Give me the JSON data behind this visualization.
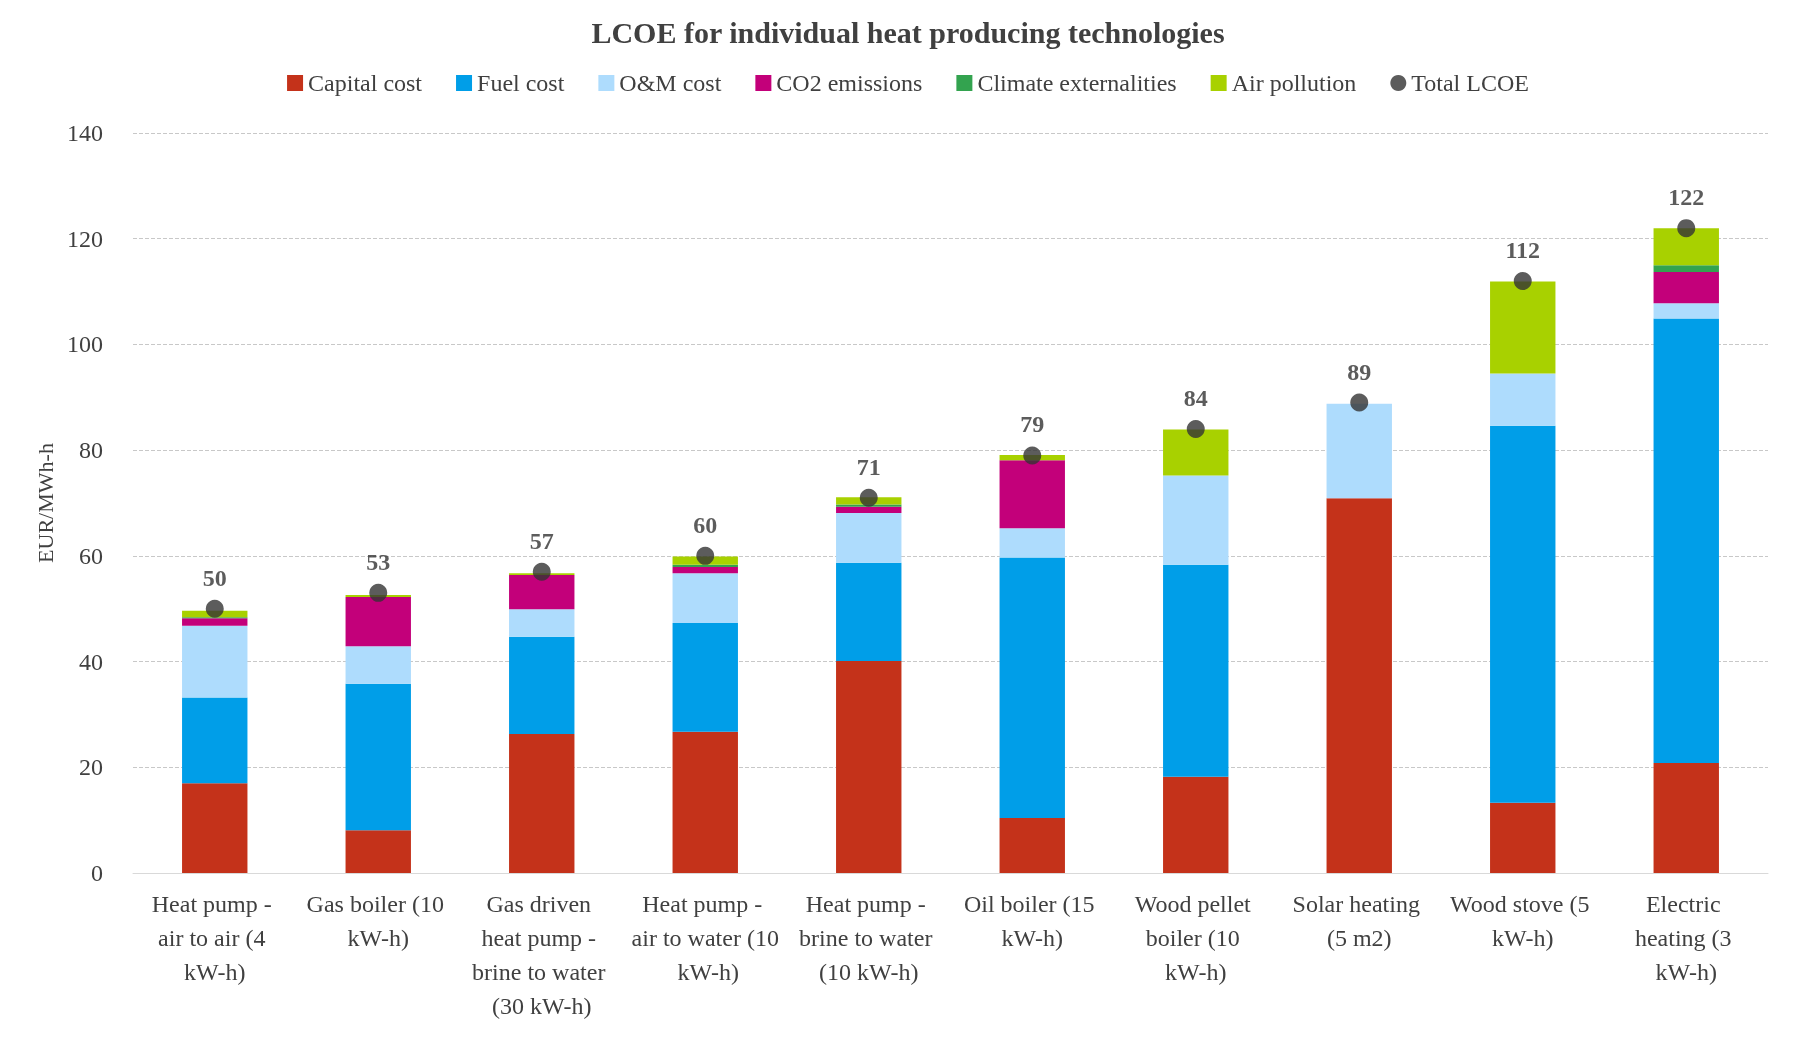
{
  "chart_data": {
    "type": "bar",
    "stacked": true,
    "title": "LCOE for individual heat producing technologies",
    "ylabel": "EUR/MWh-h",
    "categories": [
      "Heat pump - air to air (4 kW-h)",
      "Gas boiler (10 kW-h)",
      "Gas driven heat pump - brine to water (30 kW-h)",
      "Heat pump - air to water (10 kW-h)",
      "Heat pump - brine to water (10 kW-h)",
      "Oil boiler (15 kW-h)",
      "Wood pellet boiler (10 kW-h)",
      "Solar heating (5 m2)",
      "Wood stove (5 kW-h)",
      "Electric heating (3 kW-h)"
    ],
    "series": [
      {
        "name": "Capital cost",
        "color": "#c4321a",
        "values": [
          17,
          8.1,
          26.3,
          26.7,
          40.1,
          10.4,
          18.2,
          70.9,
          13.3,
          20.8
        ]
      },
      {
        "name": "Fuel cost",
        "color": "#009ee8",
        "values": [
          16.2,
          27.7,
          18.4,
          20.6,
          18.6,
          49.3,
          40.1,
          0,
          71.3,
          84.1
        ]
      },
      {
        "name": "O&M cost",
        "color": "#aedcfd",
        "values": [
          13.6,
          7.1,
          5.2,
          9.4,
          9.4,
          5.5,
          16.9,
          17.9,
          9.9,
          2.9
        ]
      },
      {
        "name": "CO2 emissions",
        "color": "#c3007a",
        "values": [
          1.4,
          9.3,
          6.5,
          1.2,
          1.2,
          12.9,
          0,
          0,
          0,
          5.9
        ]
      },
      {
        "name": "Climate externalities",
        "color": "#33a34f",
        "values": [
          0.2,
          null,
          null,
          0.4,
          0.4,
          null,
          0,
          0,
          0,
          1.3
        ]
      },
      {
        "name": "Air pollution",
        "color": "#a8d100",
        "values": [
          1.2,
          0.4,
          0.3,
          1.6,
          1.4,
          1.0,
          8.7,
          0,
          17.4,
          7.0
        ]
      },
      {
        "name": "Total LCOE",
        "type": "scatter",
        "marker": "circle",
        "data_labels": true,
        "color": "#333333",
        "values": [
          50,
          53,
          57,
          60,
          71,
          79,
          84,
          89,
          112,
          122
        ]
      }
    ],
    "ylim": [
      0,
      140
    ],
    "yticks": [
      0,
      20,
      40,
      60,
      80,
      100,
      120,
      140
    ],
    "grid": "y",
    "legend": "top"
  }
}
